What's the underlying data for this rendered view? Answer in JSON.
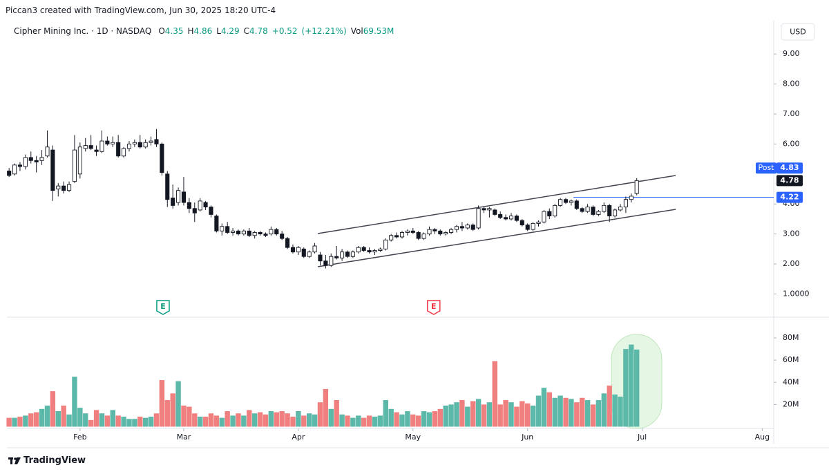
{
  "header": {
    "caption": "Piccan3 created with TradingView.com, Jun 30, 2025 18:20 UTC-4",
    "symbol": "Cipher Mining Inc. · 1D · NASDAQ",
    "legend_items": [
      {
        "label": "O",
        "value": 4.35
      },
      {
        "label": "H",
        "value": 4.86
      },
      {
        "label": "L",
        "value": 4.29
      },
      {
        "label": "C",
        "value": 4.78
      }
    ],
    "change": "+0.52",
    "change_pct": "(+12.21%)",
    "volume_label": "Vol",
    "volume_value": "69.53M",
    "currency": "USD",
    "brand": "TradingView"
  },
  "chart_data": {
    "type": "candlestick",
    "open": [
      5.1,
      5.0,
      5.3,
      5.25,
      5.55,
      5.45,
      5.45,
      5.6,
      5.8,
      4.5,
      4.6,
      4.45,
      4.75,
      5.0,
      5.85,
      5.95,
      5.8,
      5.75,
      6.1,
      6.0,
      6.05,
      5.6,
      5.85,
      6.0,
      6.05,
      5.9,
      6.05,
      6.15,
      6.0,
      5.0,
      4.2,
      4.05,
      4.4,
      4.05,
      3.85,
      3.8,
      4.05,
      3.9,
      3.6,
      3.1,
      3.25,
      3.05,
      3.1,
      3.0,
      3.1,
      2.95,
      3.05,
      3.0,
      3.0,
      3.15,
      3.0,
      2.85,
      2.55,
      2.4,
      2.5,
      2.25,
      2.4,
      2.3,
      2.1,
      1.95,
      2.25,
      2.2,
      2.4,
      2.25,
      2.4,
      2.55,
      2.45,
      2.4,
      2.45,
      2.5,
      2.8,
      2.95,
      2.9,
      3.05,
      3.1,
      3.05,
      2.85,
      3.0,
      3.15,
      3.1,
      3.0,
      3.05,
      3.15,
      3.25,
      3.2,
      3.3,
      3.2,
      3.85,
      3.8,
      3.8,
      3.65,
      3.55,
      3.5,
      3.6,
      3.45,
      3.3,
      3.15,
      3.35,
      3.4,
      3.75,
      3.6,
      3.95,
      4.15,
      4.05,
      4.1,
      3.85,
      3.75,
      3.9,
      3.65,
      3.75,
      3.95,
      3.6,
      3.8,
      3.9,
      4.15,
      4.35
    ],
    "high": [
      5.2,
      5.35,
      5.4,
      5.65,
      5.75,
      5.6,
      5.8,
      6.45,
      5.95,
      4.7,
      4.75,
      4.75,
      6.3,
      6.05,
      6.2,
      6.3,
      5.95,
      6.45,
      6.25,
      6.25,
      6.3,
      5.9,
      6.1,
      6.15,
      6.3,
      6.15,
      6.25,
      6.5,
      6.05,
      5.1,
      4.65,
      4.55,
      4.9,
      4.2,
      4.05,
      4.2,
      4.1,
      3.95,
      3.65,
      3.35,
      3.4,
      3.2,
      3.15,
      3.15,
      3.2,
      3.1,
      3.1,
      3.05,
      3.25,
      3.2,
      3.1,
      2.9,
      2.65,
      2.6,
      2.55,
      2.45,
      2.7,
      2.4,
      2.3,
      2.35,
      2.6,
      2.5,
      2.45,
      2.45,
      2.6,
      2.6,
      2.55,
      2.5,
      2.55,
      2.85,
      3.0,
      3.05,
      3.1,
      3.15,
      3.2,
      3.1,
      3.05,
      3.25,
      3.2,
      3.15,
      3.1,
      3.2,
      3.3,
      3.4,
      3.35,
      3.35,
      3.95,
      3.9,
      3.9,
      3.85,
      3.75,
      3.65,
      3.7,
      3.65,
      3.5,
      3.35,
      3.4,
      3.45,
      3.8,
      3.85,
      4.0,
      4.2,
      4.2,
      4.15,
      4.15,
      3.9,
      4.0,
      3.95,
      3.8,
      4.05,
      4.0,
      3.85,
      4.0,
      4.25,
      4.35,
      4.86
    ],
    "low": [
      4.9,
      4.95,
      5.1,
      5.15,
      5.35,
      5.05,
      5.3,
      5.55,
      4.1,
      4.25,
      4.35,
      4.4,
      4.7,
      4.85,
      5.75,
      5.8,
      5.6,
      5.7,
      5.95,
      5.9,
      5.55,
      5.55,
      5.75,
      5.9,
      5.85,
      5.85,
      5.95,
      5.9,
      4.95,
      3.9,
      3.85,
      3.95,
      3.95,
      3.7,
      3.4,
      3.75,
      3.8,
      3.55,
      3.05,
      2.95,
      3.0,
      2.95,
      2.95,
      2.95,
      2.9,
      2.85,
      2.95,
      2.9,
      2.95,
      2.95,
      2.8,
      2.5,
      2.35,
      2.3,
      2.2,
      2.2,
      2.35,
      1.95,
      1.85,
      1.9,
      2.15,
      2.1,
      2.2,
      2.2,
      2.35,
      2.4,
      2.35,
      2.3,
      2.4,
      2.45,
      2.75,
      2.85,
      2.85,
      2.95,
      3.0,
      2.8,
      2.8,
      2.95,
      3.0,
      2.95,
      2.95,
      3.0,
      3.05,
      3.1,
      3.15,
      3.1,
      3.15,
      3.7,
      3.55,
      3.6,
      3.5,
      3.45,
      3.45,
      3.4,
      3.25,
      3.1,
      3.1,
      3.25,
      3.35,
      3.5,
      3.55,
      3.9,
      4.0,
      3.95,
      3.8,
      3.7,
      3.7,
      3.6,
      3.6,
      3.7,
      3.4,
      3.55,
      3.75,
      3.7,
      4.05,
      4.29
    ],
    "close": [
      4.95,
      5.3,
      5.25,
      5.55,
      5.45,
      5.4,
      5.55,
      5.9,
      4.45,
      4.6,
      4.45,
      4.65,
      5.8,
      5.9,
      5.95,
      5.85,
      5.75,
      6.1,
      6.0,
      6.05,
      5.6,
      5.85,
      6.0,
      6.05,
      5.9,
      6.05,
      6.1,
      6.0,
      5.05,
      4.15,
      3.95,
      4.45,
      4.05,
      3.85,
      3.7,
      4.1,
      3.9,
      3.65,
      3.1,
      3.25,
      3.05,
      3.1,
      3.0,
      3.1,
      2.95,
      3.05,
      3.0,
      2.95,
      3.15,
      3.0,
      2.85,
      2.55,
      2.4,
      2.55,
      2.25,
      2.4,
      2.6,
      2.1,
      1.95,
      2.25,
      2.2,
      2.4,
      2.25,
      2.4,
      2.55,
      2.45,
      2.4,
      2.45,
      2.5,
      2.8,
      2.95,
      2.9,
      3.05,
      3.1,
      3.05,
      2.85,
      3.0,
      3.15,
      3.1,
      3.0,
      3.05,
      3.15,
      3.25,
      3.2,
      3.3,
      3.15,
      3.85,
      3.8,
      3.85,
      3.65,
      3.55,
      3.5,
      3.6,
      3.45,
      3.3,
      3.15,
      3.35,
      3.4,
      3.75,
      3.6,
      3.95,
      4.15,
      4.05,
      4.1,
      3.85,
      3.75,
      3.9,
      3.65,
      3.75,
      3.95,
      3.6,
      3.8,
      3.9,
      4.15,
      4.26,
      4.78
    ],
    "volume": [
      8,
      8,
      9,
      10,
      12,
      13,
      16,
      19,
      32,
      14,
      19,
      11,
      45,
      17,
      12,
      6,
      15,
      12,
      10,
      15,
      10,
      9,
      7,
      7,
      9,
      8,
      9,
      12,
      42,
      24,
      30,
      41,
      19,
      18,
      12,
      9,
      9,
      12,
      10,
      8,
      14,
      10,
      12,
      10,
      15,
      12,
      13,
      11,
      14,
      13,
      14,
      12,
      9,
      14,
      10,
      12,
      11,
      22,
      34,
      16,
      24,
      11,
      10,
      8,
      10,
      8,
      10,
      9,
      10,
      24,
      16,
      13,
      11,
      14,
      11,
      10,
      14,
      13,
      14,
      16,
      19,
      20,
      22,
      24,
      18,
      23,
      25,
      20,
      22,
      59,
      20,
      24,
      22,
      18,
      23,
      21,
      19,
      28,
      35,
      31,
      26,
      28,
      26,
      25,
      22,
      26,
      24,
      20,
      24,
      30,
      37,
      29,
      27,
      70,
      74,
      69.53
    ],
    "up_color": "#5cb8a8",
    "down_color": "#f08080",
    "xlim": [
      -0.4,
      140.1
    ],
    "xticks": [
      {
        "value": 13,
        "label": "Feb"
      },
      {
        "value": 32,
        "label": "Mar"
      },
      {
        "value": 53,
        "label": "Apr"
      },
      {
        "value": 74,
        "label": "May"
      },
      {
        "value": 95,
        "label": "Jun"
      },
      {
        "value": 116,
        "label": "Jul"
      },
      {
        "value": 138,
        "label": "Aug"
      }
    ],
    "ylim": [
      0.25,
      10.11
    ],
    "yticks": [
      {
        "value": 1,
        "label": "1.0000"
      },
      {
        "value": 2,
        "label": "2.00"
      },
      {
        "value": 3,
        "label": "3.00"
      },
      {
        "value": 4,
        "label": "4.00"
      },
      {
        "value": 6,
        "label": "6.00"
      },
      {
        "value": 7,
        "label": "7.00"
      },
      {
        "value": 8,
        "label": "8.00"
      },
      {
        "value": 9,
        "label": "9.00"
      }
    ],
    "volume_ylim": [
      0,
      98.1
    ],
    "volume_yticks": [
      {
        "value": 20,
        "label": "20M"
      },
      {
        "value": 40,
        "label": "40M"
      },
      {
        "value": 60,
        "label": "60M"
      },
      {
        "value": 80,
        "label": "80M"
      }
    ],
    "price_labels": [
      {
        "label": "Post",
        "value": 4.83,
        "color": "#2962ff"
      },
      {
        "value": 4.78,
        "color": "#131722"
      },
      {
        "value": 4.22,
        "color": "#2962ff"
      }
    ],
    "earnings": [
      {
        "label": "E",
        "index": 28.2,
        "color": "#089981"
      },
      {
        "label": "E",
        "index": 77.8,
        "color": "#f23645"
      }
    ],
    "grid": false
  }
}
